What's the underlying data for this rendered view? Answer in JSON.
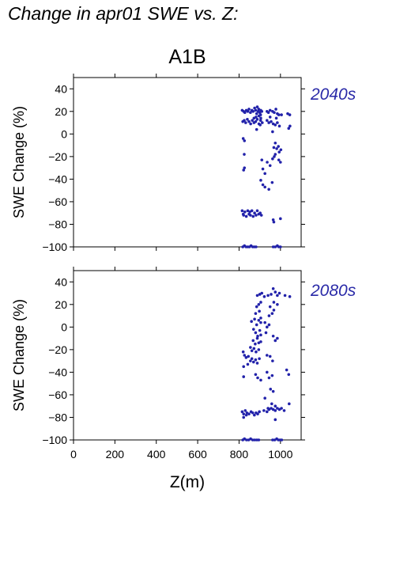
{
  "figure_title": "Change in apr01 SWE vs. Z:",
  "chart_data": [
    {
      "type": "scatter",
      "title": "A1B",
      "period_label": "2040s",
      "xlabel": "",
      "ylabel": "SWE Change (%)",
      "xlim": [
        0,
        1100
      ],
      "ylim": [
        -100,
        50
      ],
      "xticks": [
        0,
        200,
        400,
        600,
        800,
        1000
      ],
      "yticks": [
        -100,
        -80,
        -60,
        -40,
        -20,
        0,
        20,
        40
      ],
      "ytick_labels": [
        "−100",
        "−80",
        "−60",
        "−40",
        "−20",
        "0",
        "20",
        "40"
      ],
      "marker_color": "#2222aa",
      "points": [
        [
          815,
          21
        ],
        [
          822,
          20
        ],
        [
          828,
          19
        ],
        [
          835,
          21
        ],
        [
          842,
          20
        ],
        [
          848,
          22
        ],
        [
          855,
          19
        ],
        [
          862,
          21
        ],
        [
          868,
          20
        ],
        [
          875,
          23
        ],
        [
          880,
          21
        ],
        [
          885,
          18
        ],
        [
          888,
          24
        ],
        [
          892,
          20
        ],
        [
          895,
          22
        ],
        [
          900,
          19
        ],
        [
          905,
          21
        ],
        [
          910,
          20
        ],
        [
          882,
          15
        ],
        [
          896,
          16
        ],
        [
          904,
          17
        ],
        [
          935,
          20
        ],
        [
          942,
          19
        ],
        [
          950,
          21
        ],
        [
          962,
          20
        ],
        [
          970,
          19
        ],
        [
          978,
          22
        ],
        [
          985,
          18
        ],
        [
          992,
          17
        ],
        [
          1005,
          17
        ],
        [
          1035,
          18
        ],
        [
          1045,
          17
        ],
        [
          818,
          11
        ],
        [
          825,
          12
        ],
        [
          832,
          10
        ],
        [
          840,
          13
        ],
        [
          848,
          11
        ],
        [
          856,
          9
        ],
        [
          864,
          12
        ],
        [
          872,
          10
        ],
        [
          880,
          11
        ],
        [
          888,
          13
        ],
        [
          896,
          9
        ],
        [
          904,
          12
        ],
        [
          912,
          10
        ],
        [
          935,
          12
        ],
        [
          944,
          10
        ],
        [
          955,
          11
        ],
        [
          965,
          9
        ],
        [
          975,
          8
        ],
        [
          985,
          10
        ],
        [
          995,
          7
        ],
        [
          1040,
          5
        ],
        [
          1046,
          7
        ],
        [
          872,
          14
        ],
        [
          905,
          14
        ],
        [
          950,
          15
        ],
        [
          980,
          14
        ],
        [
          820,
          -4
        ],
        [
          826,
          -6
        ],
        [
          885,
          4
        ],
        [
          902,
          8
        ],
        [
          962,
          2
        ],
        [
          975,
          -8
        ],
        [
          968,
          -12
        ],
        [
          982,
          -13
        ],
        [
          990,
          -11
        ],
        [
          994,
          -16
        ],
        [
          1002,
          -14
        ],
        [
          975,
          -18
        ],
        [
          825,
          -18
        ],
        [
          826,
          -30
        ],
        [
          822,
          -32
        ],
        [
          910,
          -23
        ],
        [
          915,
          -31
        ],
        [
          925,
          -35
        ],
        [
          936,
          -25
        ],
        [
          950,
          -28
        ],
        [
          962,
          -22
        ],
        [
          970,
          -20
        ],
        [
          992,
          -23
        ],
        [
          1000,
          -25
        ],
        [
          905,
          -41
        ],
        [
          915,
          -45
        ],
        [
          925,
          -47
        ],
        [
          944,
          -49
        ],
        [
          960,
          -43
        ],
        [
          815,
          -68
        ],
        [
          822,
          -72
        ],
        [
          828,
          -69
        ],
        [
          835,
          -73
        ],
        [
          842,
          -68
        ],
        [
          848,
          -71
        ],
        [
          855,
          -72
        ],
        [
          862,
          -68
        ],
        [
          868,
          -73
        ],
        [
          875,
          -70
        ],
        [
          882,
          -72
        ],
        [
          888,
          -68
        ],
        [
          895,
          -71
        ],
        [
          902,
          -70
        ],
        [
          908,
          -72
        ],
        [
          820,
          -71
        ],
        [
          852,
          -69
        ],
        [
          965,
          -76
        ],
        [
          968,
          -78
        ],
        [
          1000,
          -75
        ],
        [
          818,
          -100
        ],
        [
          826,
          -99
        ],
        [
          834,
          -100
        ],
        [
          842,
          -100
        ],
        [
          850,
          -100
        ],
        [
          858,
          -99
        ],
        [
          866,
          -100
        ],
        [
          874,
          -100
        ],
        [
          882,
          -100
        ],
        [
          965,
          -100
        ],
        [
          975,
          -100
        ],
        [
          985,
          -99
        ],
        [
          992,
          -100
        ],
        [
          1000,
          -100
        ]
      ]
    },
    {
      "type": "scatter",
      "title": "",
      "period_label": "2080s",
      "xlabel": "Z(m)",
      "ylabel": "SWE Change (%)",
      "xlim": [
        0,
        1100
      ],
      "ylim": [
        -100,
        50
      ],
      "xticks": [
        0,
        200,
        400,
        600,
        800,
        1000
      ],
      "xtick_labels": [
        "0",
        "200",
        "400",
        "600",
        "800",
        "1000"
      ],
      "yticks": [
        -100,
        -80,
        -60,
        -40,
        -20,
        0,
        20,
        40
      ],
      "ytick_labels": [
        "−100",
        "−80",
        "−60",
        "−40",
        "−20",
        "0",
        "20",
        "40"
      ],
      "marker_color": "#2222aa",
      "points": [
        [
          888,
          28
        ],
        [
          900,
          29
        ],
        [
          910,
          30
        ],
        [
          922,
          27
        ],
        [
          940,
          28
        ],
        [
          955,
          29
        ],
        [
          965,
          34
        ],
        [
          975,
          31
        ],
        [
          985,
          28
        ],
        [
          995,
          30
        ],
        [
          1022,
          28
        ],
        [
          1045,
          27
        ],
        [
          885,
          18
        ],
        [
          895,
          20
        ],
        [
          905,
          22
        ],
        [
          950,
          18
        ],
        [
          968,
          22
        ],
        [
          985,
          20
        ],
        [
          880,
          12
        ],
        [
          898,
          14
        ],
        [
          905,
          8
        ],
        [
          945,
          10
        ],
        [
          960,
          12
        ],
        [
          968,
          15
        ],
        [
          860,
          5
        ],
        [
          875,
          7
        ],
        [
          885,
          2
        ],
        [
          895,
          6
        ],
        [
          905,
          4
        ],
        [
          925,
          4
        ],
        [
          935,
          0
        ],
        [
          945,
          2
        ],
        [
          870,
          -2
        ],
        [
          880,
          -5
        ],
        [
          890,
          -8
        ],
        [
          900,
          -3
        ],
        [
          905,
          -7
        ],
        [
          930,
          -5
        ],
        [
          868,
          -12
        ],
        [
          878,
          -15
        ],
        [
          888,
          -10
        ],
        [
          895,
          -14
        ],
        [
          905,
          -13
        ],
        [
          965,
          -8
        ],
        [
          975,
          -12
        ],
        [
          985,
          -10
        ],
        [
          855,
          -18
        ],
        [
          862,
          -21
        ],
        [
          872,
          -19
        ],
        [
          882,
          -22
        ],
        [
          895,
          -20
        ],
        [
          935,
          -25
        ],
        [
          820,
          -22
        ],
        [
          826,
          -25
        ],
        [
          834,
          -27
        ],
        [
          845,
          -26
        ],
        [
          855,
          -30
        ],
        [
          862,
          -28
        ],
        [
          870,
          -31
        ],
        [
          880,
          -29
        ],
        [
          888,
          -32
        ],
        [
          898,
          -28
        ],
        [
          950,
          -26
        ],
        [
          962,
          -30
        ],
        [
          1030,
          -38
        ],
        [
          822,
          -35
        ],
        [
          842,
          -33
        ],
        [
          880,
          -42
        ],
        [
          890,
          -45
        ],
        [
          905,
          -47
        ],
        [
          935,
          -40
        ],
        [
          945,
          -45
        ],
        [
          960,
          -43
        ],
        [
          822,
          -44
        ],
        [
          1040,
          -42
        ],
        [
          952,
          -55
        ],
        [
          965,
          -57
        ],
        [
          925,
          -63
        ],
        [
          958,
          -68
        ],
        [
          975,
          -70
        ],
        [
          940,
          -72
        ],
        [
          1042,
          -68
        ],
        [
          815,
          -75
        ],
        [
          822,
          -77
        ],
        [
          830,
          -74
        ],
        [
          838,
          -76
        ],
        [
          848,
          -77
        ],
        [
          858,
          -75
        ],
        [
          866,
          -76
        ],
        [
          874,
          -78
        ],
        [
          882,
          -76
        ],
        [
          890,
          -77
        ],
        [
          898,
          -75
        ],
        [
          920,
          -74
        ],
        [
          935,
          -75
        ],
        [
          945,
          -73
        ],
        [
          955,
          -72
        ],
        [
          965,
          -73
        ],
        [
          975,
          -74
        ],
        [
          985,
          -72
        ],
        [
          995,
          -73
        ],
        [
          1005,
          -72
        ],
        [
          1018,
          -74
        ],
        [
          822,
          -80
        ],
        [
          975,
          -82
        ],
        [
          835,
          -78
        ],
        [
          818,
          -100
        ],
        [
          826,
          -99
        ],
        [
          836,
          -100
        ],
        [
          846,
          -100
        ],
        [
          856,
          -99
        ],
        [
          866,
          -100
        ],
        [
          876,
          -100
        ],
        [
          886,
          -100
        ],
        [
          895,
          -100
        ],
        [
          962,
          -100
        ],
        [
          972,
          -100
        ],
        [
          982,
          -99
        ],
        [
          990,
          -100
        ],
        [
          998,
          -100
        ],
        [
          1006,
          -100
        ]
      ]
    }
  ]
}
